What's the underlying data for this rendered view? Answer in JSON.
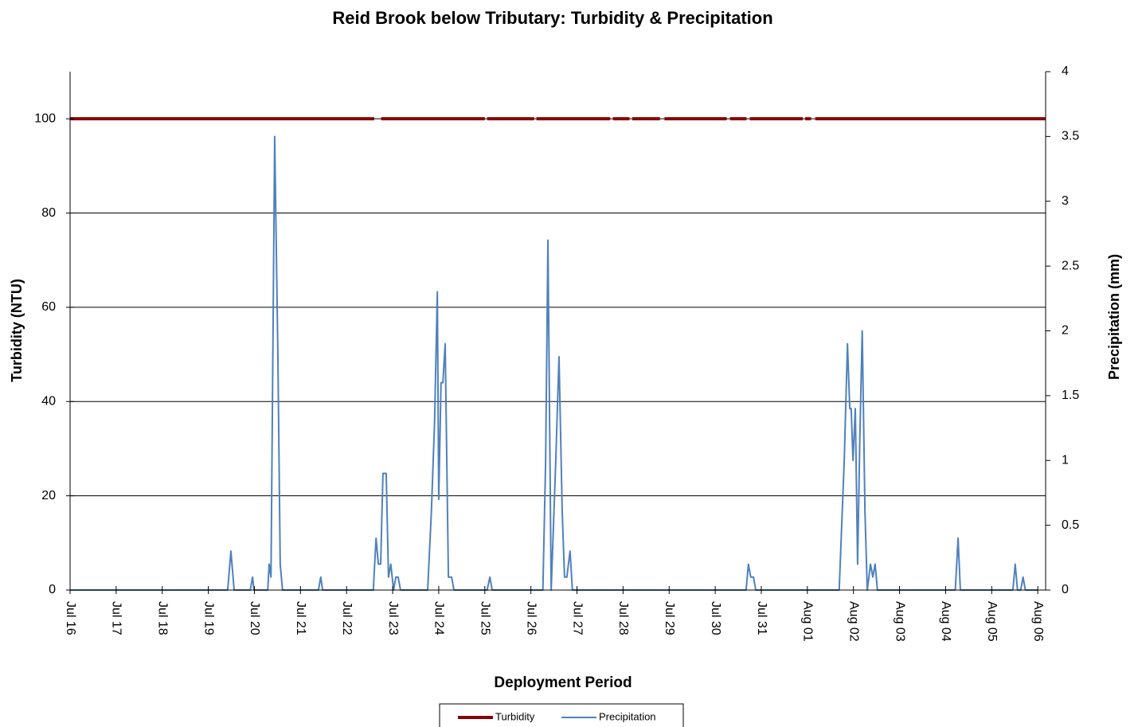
{
  "chart_data": {
    "type": "line",
    "title": "Reid Brook below Tributary: Turbidity & Precipitation",
    "xlabel": "Deployment Period",
    "ylabel": "Turbidity (NTU)",
    "y2label": "Precipitation (mm)",
    "xlim": [
      0,
      21.17
    ],
    "xticks": [
      {
        "value": 0,
        "label": "Jul 16"
      },
      {
        "value": 1,
        "label": "Jul 17"
      },
      {
        "value": 2,
        "label": "Jul 18"
      },
      {
        "value": 3,
        "label": "Jul 19"
      },
      {
        "value": 4,
        "label": "Jul 20"
      },
      {
        "value": 5,
        "label": "Jul 21"
      },
      {
        "value": 6,
        "label": "Jul 22"
      },
      {
        "value": 7,
        "label": "Jul 23"
      },
      {
        "value": 8,
        "label": "Jul 24"
      },
      {
        "value": 9,
        "label": "Jul 25"
      },
      {
        "value": 10,
        "label": "Jul 26"
      },
      {
        "value": 11,
        "label": "Jul 27"
      },
      {
        "value": 12,
        "label": "Jul 28"
      },
      {
        "value": 13,
        "label": "Jul 29"
      },
      {
        "value": 14,
        "label": "Jul 30"
      },
      {
        "value": 15,
        "label": "Jul 31"
      },
      {
        "value": 16,
        "label": "Aug 01"
      },
      {
        "value": 17,
        "label": "Aug 02"
      },
      {
        "value": 18,
        "label": "Aug 03"
      },
      {
        "value": 19,
        "label": "Aug 04"
      },
      {
        "value": 20,
        "label": "Aug 05"
      },
      {
        "value": 21,
        "label": "Aug 06"
      }
    ],
    "ylim": [
      0,
      110
    ],
    "yticks": [
      0,
      20,
      40,
      60,
      80,
      100
    ],
    "y2lim": [
      0,
      4
    ],
    "y2ticks": [
      0,
      0.5,
      1,
      1.5,
      2,
      2.5,
      3,
      3.5,
      4
    ],
    "grid": true,
    "legend": "bottom",
    "series": [
      {
        "name": "Turbidity",
        "color": "#8b0000",
        "axis": "y",
        "x": [
          0,
          6.6,
          6.67,
          6.75,
          9.0,
          9.02,
          9.05,
          10.07,
          10.09,
          10.12,
          11.72,
          11.75,
          11.78,
          12.14,
          12.17,
          12.2,
          12.8,
          12.84,
          12.9,
          14.25,
          14.28,
          14.32,
          14.68,
          14.71,
          14.75,
          15.9,
          15.92,
          15.95,
          16.08,
          16.12,
          16.17,
          21.17
        ],
        "values": [
          100,
          100,
          null,
          100,
          100,
          null,
          100,
          100,
          null,
          100,
          100,
          null,
          100,
          100,
          null,
          100,
          100,
          null,
          100,
          100,
          null,
          100,
          100,
          null,
          100,
          100,
          null,
          100,
          100,
          null,
          100,
          100
        ]
      },
      {
        "name": "Precipitation",
        "color": "#4f81bd",
        "axis": "y2",
        "x": [
          0,
          3.42,
          3.49,
          3.56,
          3.91,
          3.96,
          3.99,
          4.29,
          4.32,
          4.36,
          4.44,
          4.51,
          4.56,
          4.61,
          5.39,
          5.44,
          5.48,
          6.58,
          6.64,
          6.69,
          6.74,
          6.79,
          6.86,
          6.91,
          6.96,
          7.02,
          7.07,
          7.12,
          7.17,
          7.76,
          7.84,
          7.91,
          7.97,
          8.0,
          8.05,
          8.09,
          8.14,
          8.21,
          8.28,
          8.33,
          9.05,
          9.11,
          9.16,
          10.26,
          10.32,
          10.37,
          10.44,
          10.54,
          10.61,
          10.68,
          10.73,
          10.78,
          10.85,
          10.9,
          14.67,
          14.72,
          14.77,
          14.83,
          14.88,
          16.69,
          16.8,
          16.87,
          16.92,
          16.95,
          16.99,
          17.04,
          17.09,
          17.14,
          17.19,
          17.25,
          17.3,
          17.37,
          17.42,
          17.47,
          17.52,
          19.21,
          19.27,
          19.32,
          20.46,
          20.51,
          20.56,
          20.63,
          20.68,
          20.73,
          21.0
        ],
        "values": [
          0,
          0,
          0.3,
          0,
          0,
          0.1,
          0,
          0,
          0.2,
          0.1,
          3.5,
          1.8,
          0.2,
          0,
          0,
          0.1,
          0,
          0,
          0.4,
          0.2,
          0.2,
          0.9,
          0.9,
          0.1,
          0.2,
          0,
          0.1,
          0.1,
          0,
          0,
          0.6,
          1.3,
          2.3,
          0.7,
          1.6,
          1.6,
          1.9,
          0.1,
          0.1,
          0,
          0,
          0.1,
          0,
          0,
          1.0,
          2.7,
          0,
          1.0,
          1.8,
          0.6,
          0.1,
          0.1,
          0.3,
          0,
          0,
          0.2,
          0.1,
          0.1,
          0,
          0,
          1.0,
          1.9,
          1.4,
          1.4,
          1.0,
          1.4,
          0.2,
          1.2,
          2.0,
          0.6,
          0,
          0.2,
          0.1,
          0.2,
          0,
          0,
          0.4,
          0,
          0,
          0.2,
          0,
          0,
          0.1,
          0,
          0
        ]
      }
    ]
  }
}
